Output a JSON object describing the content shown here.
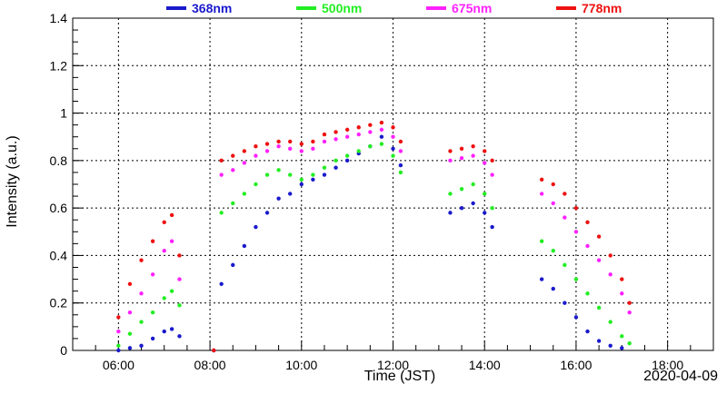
{
  "chart_data": {
    "type": "scatter",
    "xlabel": "Time (JST)",
    "ylabel": "Intensity (a.u.)",
    "date_label": "2020-04-09",
    "xlim": [
      "05:00",
      "19:00"
    ],
    "ylim": [
      0,
      1.4
    ],
    "grid": true,
    "legend_position": "top",
    "x_ticks": [
      "06:00",
      "08:00",
      "10:00",
      "12:00",
      "14:00",
      "16:00",
      "18:00"
    ],
    "y_ticks": [
      "0",
      "0.2",
      "0.4",
      "0.6",
      "0.8",
      "1",
      "1.2",
      "1.4"
    ],
    "series": [
      {
        "name": "368nm",
        "color": "#1a1acc",
        "points": [
          [
            "06:00",
            0.0
          ],
          [
            "06:15",
            0.01
          ],
          [
            "06:30",
            0.02
          ],
          [
            "06:45",
            0.05
          ],
          [
            "07:00",
            0.08
          ],
          [
            "07:10",
            0.09
          ],
          [
            "07:20",
            0.06
          ],
          [
            "08:05",
            0.0
          ],
          [
            "08:15",
            0.28
          ],
          [
            "08:30",
            0.36
          ],
          [
            "08:45",
            0.44
          ],
          [
            "09:00",
            0.52
          ],
          [
            "09:15",
            0.58
          ],
          [
            "09:30",
            0.64
          ],
          [
            "09:45",
            0.66
          ],
          [
            "10:00",
            0.7
          ],
          [
            "10:15",
            0.72
          ],
          [
            "10:30",
            0.74
          ],
          [
            "10:45",
            0.77
          ],
          [
            "11:00",
            0.8
          ],
          [
            "11:15",
            0.83
          ],
          [
            "11:30",
            0.86
          ],
          [
            "11:45",
            0.9
          ],
          [
            "12:00",
            0.85
          ],
          [
            "12:10",
            0.78
          ],
          [
            "13:15",
            0.58
          ],
          [
            "13:30",
            0.6
          ],
          [
            "13:45",
            0.62
          ],
          [
            "14:00",
            0.58
          ],
          [
            "14:10",
            0.52
          ],
          [
            "15:15",
            0.3
          ],
          [
            "15:30",
            0.26
          ],
          [
            "15:45",
            0.2
          ],
          [
            "16:00",
            0.14
          ],
          [
            "16:15",
            0.08
          ],
          [
            "16:30",
            0.04
          ],
          [
            "16:45",
            0.02
          ],
          [
            "17:00",
            0.01
          ]
        ]
      },
      {
        "name": "500nm",
        "color": "#22ee22",
        "points": [
          [
            "06:00",
            0.02
          ],
          [
            "06:15",
            0.07
          ],
          [
            "06:30",
            0.12
          ],
          [
            "06:45",
            0.16
          ],
          [
            "07:00",
            0.22
          ],
          [
            "07:10",
            0.25
          ],
          [
            "07:20",
            0.19
          ],
          [
            "08:05",
            0.0
          ],
          [
            "08:15",
            0.58
          ],
          [
            "08:30",
            0.62
          ],
          [
            "08:45",
            0.66
          ],
          [
            "09:00",
            0.7
          ],
          [
            "09:15",
            0.74
          ],
          [
            "09:30",
            0.76
          ],
          [
            "09:45",
            0.74
          ],
          [
            "10:00",
            0.72
          ],
          [
            "10:15",
            0.74
          ],
          [
            "10:30",
            0.77
          ],
          [
            "10:45",
            0.8
          ],
          [
            "11:00",
            0.82
          ],
          [
            "11:15",
            0.84
          ],
          [
            "11:30",
            0.86
          ],
          [
            "11:45",
            0.87
          ],
          [
            "12:00",
            0.82
          ],
          [
            "12:10",
            0.75
          ],
          [
            "13:15",
            0.66
          ],
          [
            "13:30",
            0.68
          ],
          [
            "13:45",
            0.7
          ],
          [
            "14:00",
            0.66
          ],
          [
            "14:10",
            0.6
          ],
          [
            "15:15",
            0.46
          ],
          [
            "15:30",
            0.42
          ],
          [
            "15:45",
            0.36
          ],
          [
            "16:00",
            0.3
          ],
          [
            "16:15",
            0.24
          ],
          [
            "16:30",
            0.18
          ],
          [
            "16:45",
            0.12
          ],
          [
            "17:00",
            0.06
          ],
          [
            "17:10",
            0.03
          ]
        ]
      },
      {
        "name": "675nm",
        "color": "#ff22ff",
        "points": [
          [
            "06:00",
            0.08
          ],
          [
            "06:15",
            0.16
          ],
          [
            "06:30",
            0.24
          ],
          [
            "06:45",
            0.32
          ],
          [
            "07:00",
            0.42
          ],
          [
            "07:10",
            0.46
          ],
          [
            "07:20",
            0.3
          ],
          [
            "08:05",
            0.0
          ],
          [
            "08:15",
            0.74
          ],
          [
            "08:30",
            0.76
          ],
          [
            "08:45",
            0.79
          ],
          [
            "09:00",
            0.82
          ],
          [
            "09:15",
            0.84
          ],
          [
            "09:30",
            0.86
          ],
          [
            "09:45",
            0.85
          ],
          [
            "10:00",
            0.84
          ],
          [
            "10:15",
            0.85
          ],
          [
            "10:30",
            0.88
          ],
          [
            "10:45",
            0.89
          ],
          [
            "11:00",
            0.9
          ],
          [
            "11:15",
            0.91
          ],
          [
            "11:30",
            0.92
          ],
          [
            "11:45",
            0.93
          ],
          [
            "12:00",
            0.9
          ],
          [
            "12:10",
            0.84
          ],
          [
            "13:15",
            0.8
          ],
          [
            "13:30",
            0.81
          ],
          [
            "13:45",
            0.82
          ],
          [
            "14:00",
            0.79
          ],
          [
            "14:10",
            0.74
          ],
          [
            "15:15",
            0.66
          ],
          [
            "15:30",
            0.62
          ],
          [
            "15:45",
            0.56
          ],
          [
            "16:00",
            0.5
          ],
          [
            "16:15",
            0.44
          ],
          [
            "16:30",
            0.38
          ],
          [
            "16:45",
            0.32
          ],
          [
            "17:00",
            0.24
          ],
          [
            "17:10",
            0.16
          ]
        ]
      },
      {
        "name": "778nm",
        "color": "#ee1111",
        "points": [
          [
            "06:00",
            0.14
          ],
          [
            "06:15",
            0.28
          ],
          [
            "06:30",
            0.38
          ],
          [
            "06:45",
            0.46
          ],
          [
            "07:00",
            0.54
          ],
          [
            "07:10",
            0.57
          ],
          [
            "07:20",
            0.4
          ],
          [
            "08:05",
            0.0
          ],
          [
            "08:15",
            0.8
          ],
          [
            "08:30",
            0.82
          ],
          [
            "08:45",
            0.84
          ],
          [
            "09:00",
            0.86
          ],
          [
            "09:15",
            0.87
          ],
          [
            "09:30",
            0.88
          ],
          [
            "09:45",
            0.88
          ],
          [
            "10:00",
            0.87
          ],
          [
            "10:15",
            0.88
          ],
          [
            "10:30",
            0.91
          ],
          [
            "10:45",
            0.92
          ],
          [
            "11:00",
            0.93
          ],
          [
            "11:15",
            0.94
          ],
          [
            "11:30",
            0.95
          ],
          [
            "11:45",
            0.96
          ],
          [
            "12:00",
            0.94
          ],
          [
            "12:10",
            0.88
          ],
          [
            "13:15",
            0.84
          ],
          [
            "13:30",
            0.85
          ],
          [
            "13:45",
            0.86
          ],
          [
            "14:00",
            0.84
          ],
          [
            "14:10",
            0.8
          ],
          [
            "15:15",
            0.72
          ],
          [
            "15:30",
            0.7
          ],
          [
            "15:45",
            0.66
          ],
          [
            "16:00",
            0.6
          ],
          [
            "16:15",
            0.54
          ],
          [
            "16:30",
            0.48
          ],
          [
            "16:45",
            0.4
          ],
          [
            "17:00",
            0.3
          ],
          [
            "17:10",
            0.2
          ]
        ]
      }
    ]
  }
}
